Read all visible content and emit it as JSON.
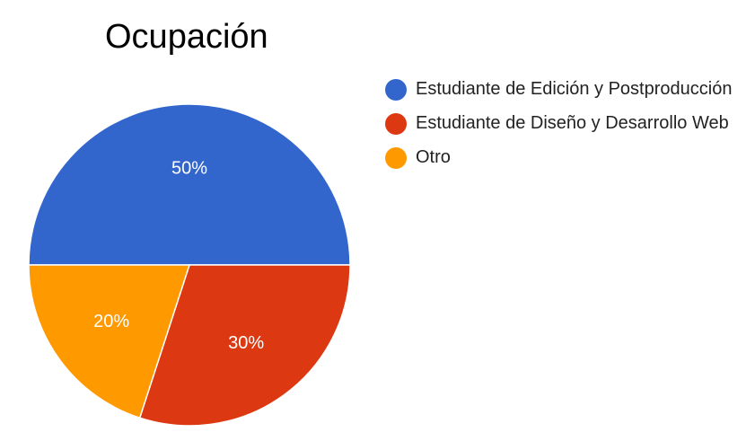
{
  "chart_data": {
    "type": "pie",
    "title": "Ocupación",
    "legend_position": "right",
    "slices": [
      {
        "label": "Estudiante de Edición y Postproducción",
        "value": 50,
        "display": "50%",
        "color": "#3366cc"
      },
      {
        "label": "Estudiante de Diseño y Desarrollo Web",
        "value": 30,
        "display": "30%",
        "color": "#dc3912"
      },
      {
        "label": "Otro",
        "value": 20,
        "display": "20%",
        "color": "#ff9900"
      }
    ]
  }
}
